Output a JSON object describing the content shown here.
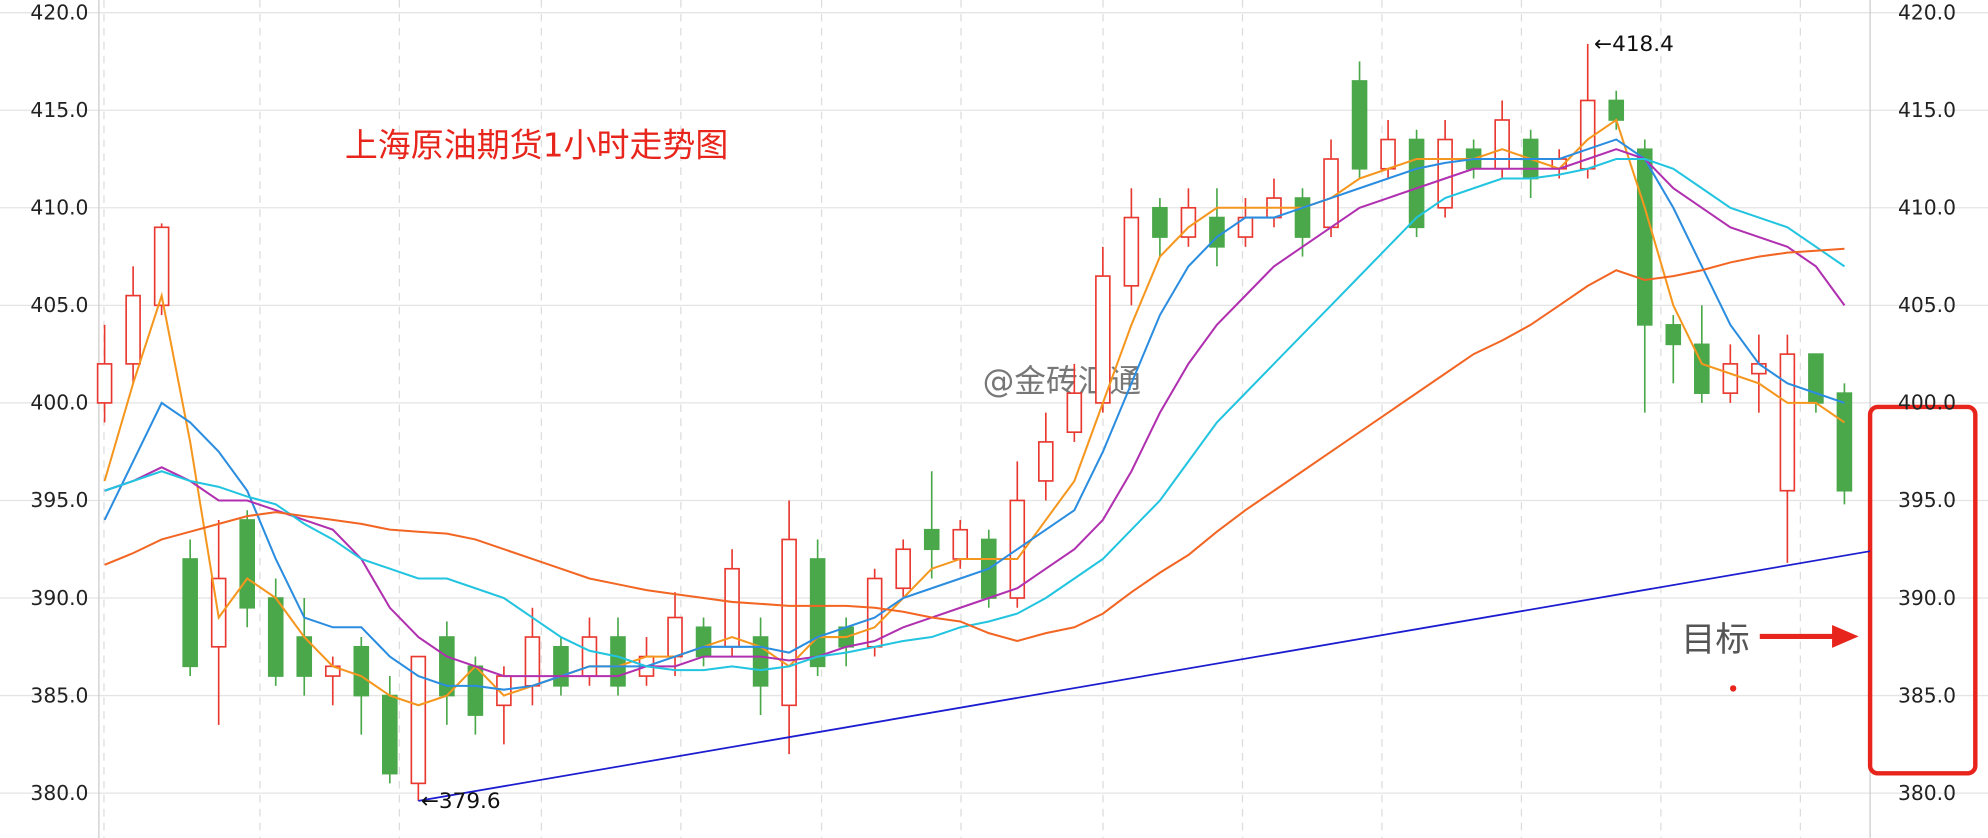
{
  "chart_data": {
    "type": "candlestick",
    "title": "上海原油期货1小时走势图",
    "watermark": "@金砖汇通",
    "target_label": "目标",
    "high_label": "←418.4",
    "low_label": "←379.6",
    "up_color": "#e8382f",
    "down_color": "#4aa84a",
    "grid": true,
    "xlim": [
      -0.2,
      61.9
    ],
    "ylim": [
      377.7,
      420.65
    ],
    "yticks": [
      {
        "value": 380,
        "label": "380.0"
      },
      {
        "value": 385,
        "label": "385.0"
      },
      {
        "value": 390,
        "label": "390.0"
      },
      {
        "value": 395,
        "label": "395.0"
      },
      {
        "value": 400,
        "label": "400.0"
      },
      {
        "value": 405,
        "label": "405.0"
      },
      {
        "value": 410,
        "label": "410.0"
      },
      {
        "value": 415,
        "label": "415.0"
      },
      {
        "value": 420,
        "label": "420.0"
      }
    ],
    "open": [
      400,
      402,
      405,
      392,
      387.5,
      394,
      390,
      388,
      386,
      387.5,
      385,
      380.5,
      388,
      386.5,
      384.5,
      385.5,
      387.5,
      386,
      388,
      386,
      387,
      388.5,
      387.5,
      388,
      384.5,
      392,
      388.5,
      387.5,
      390.5,
      393.5,
      392,
      393,
      390,
      396,
      398.5,
      400,
      406,
      410,
      408.5,
      409.5,
      408.5,
      409.5,
      410.5,
      409,
      416.5,
      412,
      413.5,
      410,
      413,
      412,
      413.5,
      412,
      412,
      415.5,
      413,
      404,
      403,
      400.5,
      401.5,
      395.5,
      402.5,
      400.5
    ],
    "high": [
      404,
      407,
      409.2,
      393,
      394,
      394.5,
      391,
      390,
      387,
      388,
      386,
      387,
      388.8,
      387,
      386.5,
      389.5,
      388,
      389,
      389,
      388,
      390.3,
      389,
      392.5,
      389,
      395,
      393,
      389,
      391.5,
      393,
      396.5,
      394,
      393.5,
      397,
      399.5,
      402,
      408,
      411,
      410.5,
      411,
      411,
      410.5,
      411.5,
      411,
      413.5,
      417.5,
      414.5,
      414,
      414.5,
      413.5,
      415.5,
      414,
      413,
      418.4,
      416,
      413.5,
      404.5,
      405,
      403,
      403.5,
      403.5,
      402.5,
      401
    ],
    "low": [
      399,
      401,
      404.5,
      386,
      383.5,
      388.5,
      385.5,
      385,
      384.5,
      383,
      380.5,
      379.6,
      383.5,
      383,
      382.5,
      384.5,
      385,
      385.5,
      385,
      385.5,
      386,
      386.5,
      387,
      384,
      382,
      386,
      386.5,
      387,
      390,
      391,
      391.5,
      389.5,
      389.5,
      395,
      398,
      399.5,
      405,
      407.5,
      408,
      407,
      408,
      409,
      407.5,
      408.5,
      411.5,
      411.5,
      408.5,
      409.5,
      411.5,
      411.5,
      410.5,
      411.5,
      411.5,
      414,
      399.5,
      401,
      400,
      400,
      399.5,
      391.8,
      399.5,
      394.8
    ],
    "close": [
      402,
      405.5,
      409,
      386.5,
      391,
      389.5,
      386,
      386,
      386.5,
      385,
      381,
      387,
      385,
      384,
      386,
      388,
      385.5,
      388,
      385.5,
      387,
      389,
      387,
      391.5,
      385.5,
      393,
      386.5,
      387.5,
      391,
      392.5,
      392.5,
      393.5,
      390,
      395,
      398,
      400.5,
      406.5,
      409.5,
      408.5,
      410,
      408,
      409.5,
      410.5,
      408.5,
      412.5,
      412,
      413.5,
      409,
      413.5,
      412,
      414.5,
      411.5,
      412.5,
      415.5,
      414.5,
      404,
      403,
      400.5,
      402,
      402,
      402.5,
      400,
      395.5
    ],
    "series": [
      {
        "color": "#f5961e",
        "values": [
          396,
          401,
          405.5,
          398,
          389,
          391,
          390,
          388,
          386.5,
          386,
          385,
          384.5,
          385,
          386.5,
          385,
          385.5,
          386,
          386.5,
          386.5,
          387,
          387,
          387.5,
          388,
          387.5,
          386.5,
          388,
          388,
          388.5,
          390,
          391.5,
          392,
          392,
          392,
          394,
          396,
          400,
          404,
          407.5,
          409,
          410,
          410,
          410,
          410,
          410.5,
          411.5,
          412,
          412.5,
          412.5,
          412.5,
          413,
          412.5,
          412,
          413.5,
          414.5,
          410,
          405,
          402,
          401.5,
          401,
          400,
          400,
          399
        ]
      },
      {
        "color": "#2b8de0",
        "values": [
          394,
          397,
          400,
          399,
          397.5,
          395.5,
          392,
          389,
          388.5,
          388.5,
          387,
          386,
          385.5,
          385.5,
          385.3,
          385.5,
          386,
          386.5,
          386.5,
          386.5,
          387,
          387.5,
          387.5,
          387.5,
          387.2,
          388,
          388.5,
          389,
          390,
          390.5,
          391,
          391.5,
          392.5,
          393.5,
          394.5,
          397.5,
          401,
          404.5,
          407,
          408.5,
          409.5,
          409.5,
          410,
          410.5,
          411,
          411.5,
          412,
          412.3,
          412.5,
          412.5,
          412.5,
          412.5,
          413,
          413.5,
          412.5,
          410,
          407,
          404,
          402,
          401,
          400.5,
          400
        ]
      },
      {
        "color": "#b030b0",
        "values": [
          395.5,
          396,
          396.7,
          396,
          395,
          395,
          394.5,
          394,
          393.5,
          392,
          389.5,
          388,
          387,
          386.5,
          386,
          386,
          386,
          386,
          386,
          386.5,
          386.5,
          387,
          387,
          387,
          386.8,
          387,
          387.5,
          387.8,
          388.5,
          389,
          389.5,
          390,
          390.5,
          391.5,
          392.5,
          394,
          396.5,
          399.5,
          402,
          404,
          405.5,
          407,
          408,
          409,
          410,
          410.5,
          411,
          411.5,
          412,
          412,
          412,
          412,
          412.5,
          413,
          412.5,
          411,
          410,
          409,
          408.5,
          408,
          407,
          405
        ]
      },
      {
        "color": "#22c4e0",
        "values": [
          395.5,
          396,
          396.5,
          396,
          395.7,
          395.2,
          394.8,
          393.8,
          393,
          392,
          391.5,
          391,
          391,
          390.5,
          390,
          389,
          388,
          387.3,
          387,
          386.5,
          386.3,
          386.3,
          386.5,
          386.3,
          386.5,
          387,
          387.2,
          387.5,
          387.8,
          388,
          388.5,
          388.8,
          389.2,
          390,
          391,
          392,
          393.5,
          395,
          397,
          399,
          400.5,
          402,
          403.5,
          405,
          406.5,
          408,
          409.5,
          410.5,
          411,
          411.5,
          411.5,
          411.7,
          412,
          412.5,
          412.5,
          412,
          411,
          410,
          409.5,
          409,
          408,
          407
        ]
      },
      {
        "color": "#f26522",
        "values": [
          391.7,
          392.3,
          393,
          393.4,
          393.8,
          394.2,
          394.4,
          394.2,
          394,
          393.8,
          393.5,
          393.4,
          393.3,
          393,
          392.5,
          392,
          391.5,
          391,
          390.7,
          390.4,
          390.2,
          390,
          389.8,
          389.7,
          389.6,
          389.6,
          389.6,
          389.5,
          389.3,
          389,
          388.8,
          388.2,
          387.8,
          388.2,
          388.5,
          389.2,
          390.3,
          391.3,
          392.2,
          393.4,
          394.5,
          395.5,
          396.5,
          397.5,
          398.5,
          399.5,
          400.5,
          401.5,
          402.5,
          403.2,
          404,
          405,
          406,
          406.8,
          406.3,
          406.5,
          406.8,
          407.2,
          407.5,
          407.7,
          407.8,
          407.9
        ]
      }
    ],
    "trend_line": {
      "color": "#1c1cd0",
      "x": [
        11,
        61.9
      ],
      "values": [
        379.6,
        392.4
      ]
    }
  }
}
